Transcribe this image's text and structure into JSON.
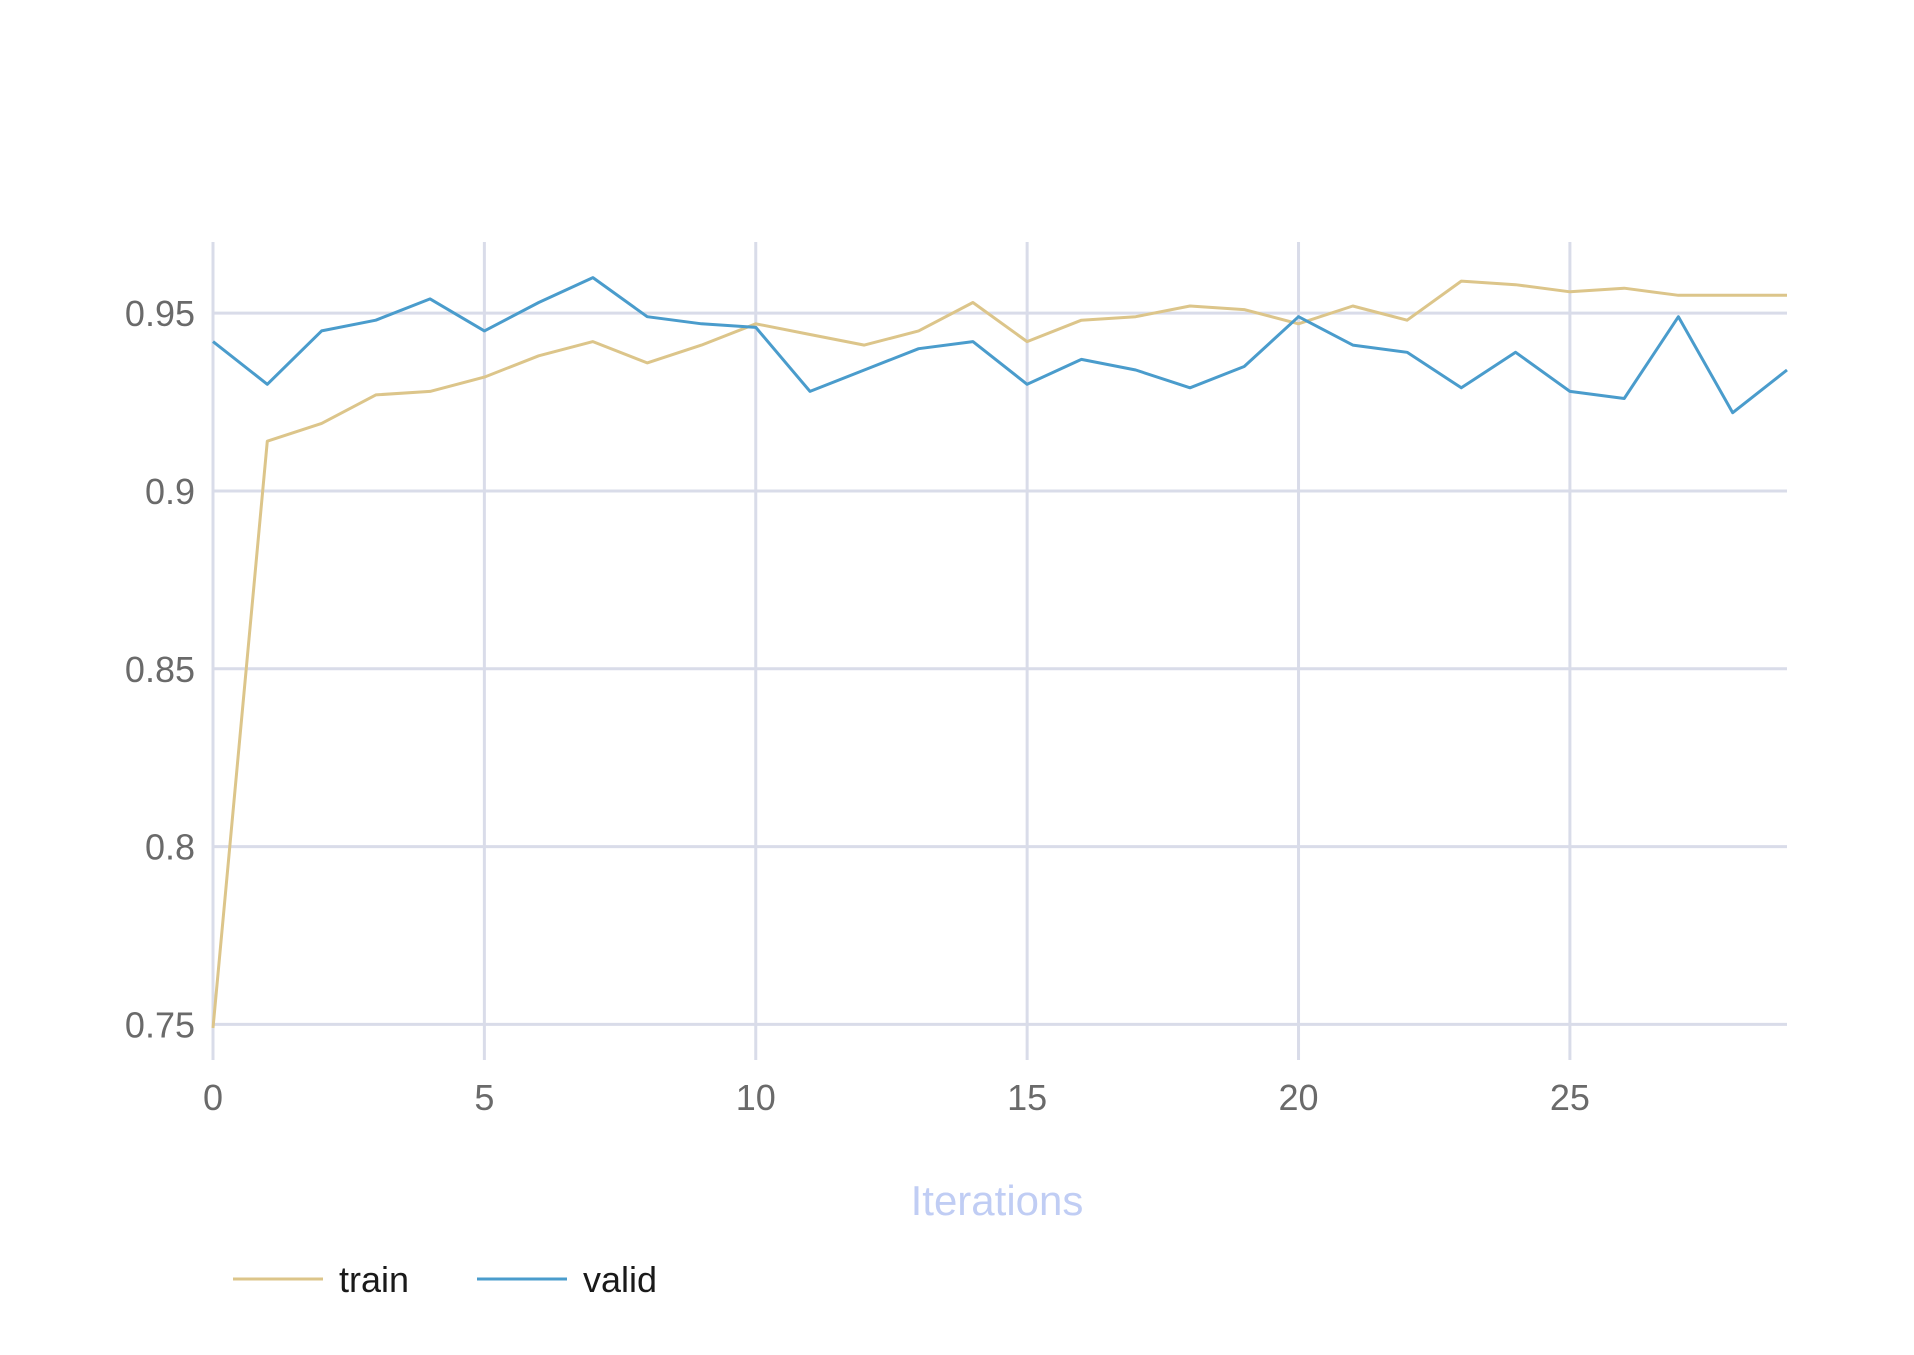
{
  "chart_data": {
    "type": "line",
    "title": "",
    "xlabel": "Iterations",
    "ylabel": "",
    "xlim": [
      0,
      29
    ],
    "ylim": [
      0.74,
      0.97
    ],
    "x_ticks": [
      0,
      5,
      10,
      15,
      20,
      25
    ],
    "y_ticks": [
      0.75,
      0.8,
      0.85,
      0.9,
      0.95
    ],
    "x_tick_labels": [
      "0",
      "5",
      "10",
      "15",
      "20",
      "25"
    ],
    "y_tick_labels": [
      "0.75",
      "0.8",
      "0.85",
      "0.9",
      "0.95"
    ],
    "grid": true,
    "legend_position": "bottom-left",
    "x": [
      0,
      1,
      2,
      3,
      4,
      5,
      6,
      7,
      8,
      9,
      10,
      11,
      12,
      13,
      14,
      15,
      16,
      17,
      18,
      19,
      20,
      21,
      22,
      23,
      24,
      25,
      26,
      27,
      28,
      29
    ],
    "series": [
      {
        "name": "train",
        "color": "#dcc58a",
        "values": [
          0.749,
          0.914,
          0.919,
          0.927,
          0.928,
          0.932,
          0.938,
          0.942,
          0.936,
          0.941,
          0.947,
          0.944,
          0.941,
          0.945,
          0.953,
          0.942,
          0.948,
          0.949,
          0.952,
          0.951,
          0.947,
          0.952,
          0.948,
          0.959,
          0.958,
          0.956,
          0.957,
          0.955,
          0.955,
          0.955
        ]
      },
      {
        "name": "valid",
        "color": "#4a9ccc",
        "values": [
          0.942,
          0.93,
          0.945,
          0.948,
          0.954,
          0.945,
          0.953,
          0.96,
          0.949,
          0.947,
          0.946,
          0.928,
          0.934,
          0.94,
          0.942,
          0.93,
          0.937,
          0.934,
          0.929,
          0.935,
          0.949,
          0.941,
          0.939,
          0.929,
          0.939,
          0.928,
          0.926,
          0.949,
          0.922,
          0.934
        ]
      }
    ]
  }
}
